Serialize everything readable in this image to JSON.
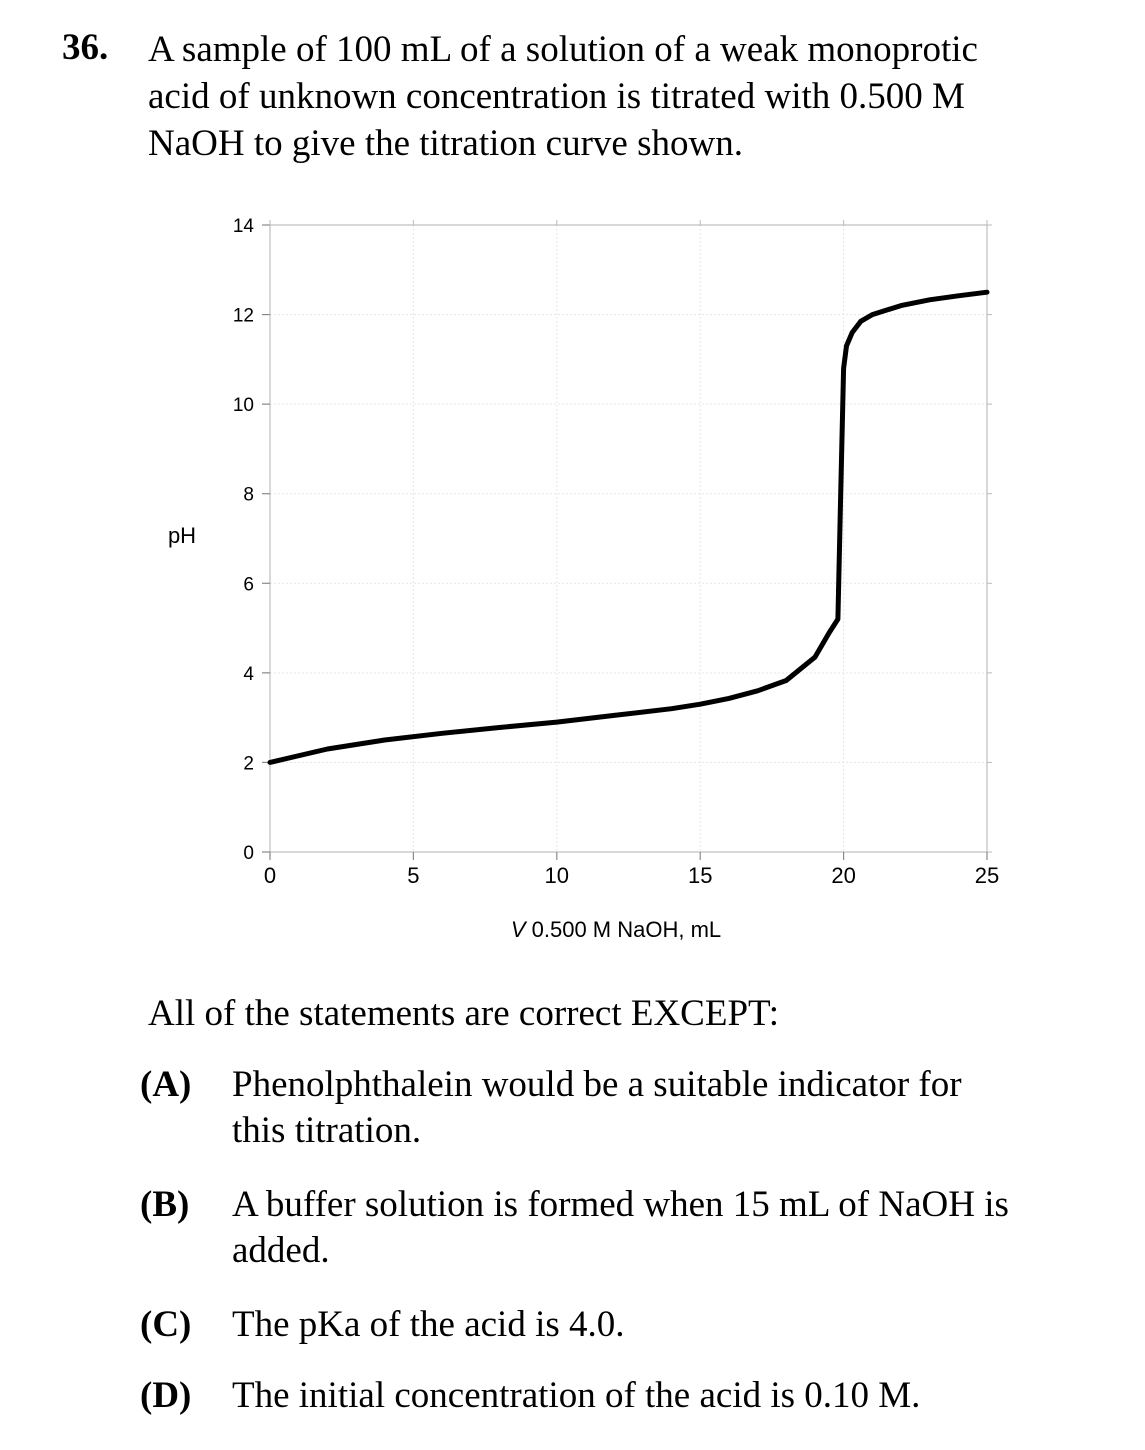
{
  "question": {
    "number": "36.",
    "stem_lines": [
      "A sample of 100 mL of a solution of a weak monoprotic",
      "acid of unknown concentration is titrated with 0.500 M",
      "NaOH to give the titration curve shown."
    ],
    "prompt": "All of the statements are correct EXCEPT:",
    "choices": [
      {
        "letter": "(A)",
        "lines": [
          "Phenolphthalein would be a suitable indicator for",
          "this titration."
        ]
      },
      {
        "letter": "(B)",
        "lines": [
          "A buffer solution is formed when 15 mL of NaOH is",
          "added."
        ]
      },
      {
        "letter": "(C)",
        "lines": [
          "The pKa of the acid is 4.0."
        ]
      },
      {
        "letter": "(D)",
        "lines": [
          "The initial concentration of the acid is 0.10 M."
        ]
      }
    ]
  },
  "chart_data": {
    "type": "line",
    "title": "",
    "xlabel_italic": "V",
    "xlabel_rest": " 0.500 M NaOH, mL",
    "ylabel": "pH",
    "xlim": [
      0,
      25
    ],
    "ylim": [
      0,
      14
    ],
    "x_ticks": [
      "0",
      "5",
      "10",
      "15",
      "20",
      "25"
    ],
    "y_ticks": [
      "0",
      "2",
      "4",
      "6",
      "8",
      "10",
      "12",
      "14"
    ],
    "grid": true,
    "legend": "none",
    "line_color": "#000000",
    "series": [
      {
        "x": [
          0,
          2,
          4,
          6,
          8,
          10,
          12,
          14,
          15,
          16,
          17,
          18,
          19,
          19.5,
          19.8,
          19.9,
          20.0,
          20.1,
          20.3,
          20.6,
          21,
          22,
          23,
          24,
          25
        ],
        "y": [
          2.0,
          2.3,
          2.5,
          2.65,
          2.78,
          2.9,
          3.05,
          3.2,
          3.3,
          3.43,
          3.6,
          3.83,
          4.35,
          4.9,
          5.2,
          8.0,
          10.8,
          11.3,
          11.6,
          11.85,
          12.0,
          12.2,
          12.33,
          12.42,
          12.5
        ]
      }
    ]
  }
}
